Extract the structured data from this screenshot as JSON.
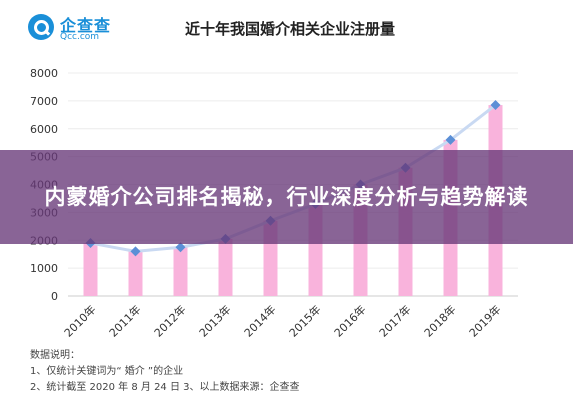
{
  "brand": {
    "name": "企查查",
    "url": "Qcc.com"
  },
  "banner": {
    "text": "内蒙婚介公司排名揭秘，行业深度分析与趋势解读"
  },
  "notes": {
    "heading": "数据说明：",
    "line1": "1、仅统计关键词为“ 婚介 ”的企业",
    "line2": "2、统计截至 2020 年 8 月 24 日  3、以上数据来源：企查查"
  },
  "colors": {
    "bar": "#f9b3dc",
    "line": "#c9d9f2",
    "marker": "#5b8fd6",
    "axis": "#cccccc",
    "grid": "#ececec"
  },
  "chart_data": {
    "type": "bar",
    "title": "近十年我国婚介相关企业注册量",
    "categories": [
      "2010年",
      "2011年",
      "2012年",
      "2013年",
      "2014年",
      "2015年",
      "2016年",
      "2017年",
      "2018年",
      "2019年"
    ],
    "values": [
      1900,
      1600,
      1750,
      2050,
      2700,
      3300,
      4000,
      4600,
      5600,
      6850
    ],
    "overlay": "line",
    "ylim": [
      0,
      8000
    ],
    "yticks": [
      0,
      1000,
      2000,
      3000,
      4000,
      5000,
      6000,
      7000,
      8000
    ],
    "grid": true,
    "legend": "none"
  }
}
